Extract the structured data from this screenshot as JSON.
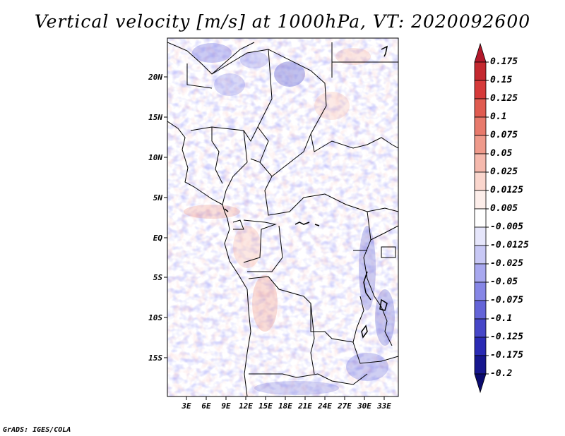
{
  "title": "Vertical velocity [m/s] at 1000hPa, VT: 2020092600",
  "credit": "GrADS: IGES/COLA",
  "map": {
    "lat_labels": [
      "20N",
      "15N",
      "10N",
      "5N",
      "EQ",
      "5S",
      "10S",
      "15S"
    ],
    "lon_labels": [
      "3E",
      "6E",
      "9E",
      "12E",
      "15E",
      "18E",
      "21E",
      "24E",
      "27E",
      "30E",
      "33E"
    ]
  },
  "colorbar": {
    "levels": [
      "0.175",
      "0.15",
      "0.125",
      "0.1",
      "0.075",
      "0.05",
      "0.025",
      "0.0125",
      "0.005",
      "-0.005",
      "-0.0125",
      "-0.025",
      "-0.05",
      "-0.075",
      "-0.1",
      "-0.125",
      "-0.175",
      "-0.2"
    ],
    "colors": [
      "#b2182b",
      "#c4282f",
      "#d63a3a",
      "#e05b50",
      "#e87a6c",
      "#ef9a8b",
      "#f5b9ad",
      "#fad6cd",
      "#fdeeea",
      "#ffffff",
      "#e6e6fb",
      "#c8c8f5",
      "#a8a8ef",
      "#8686e6",
      "#6464d8",
      "#4646c8",
      "#2a2ab4",
      "#16168e",
      "#0a0a6e"
    ]
  }
}
